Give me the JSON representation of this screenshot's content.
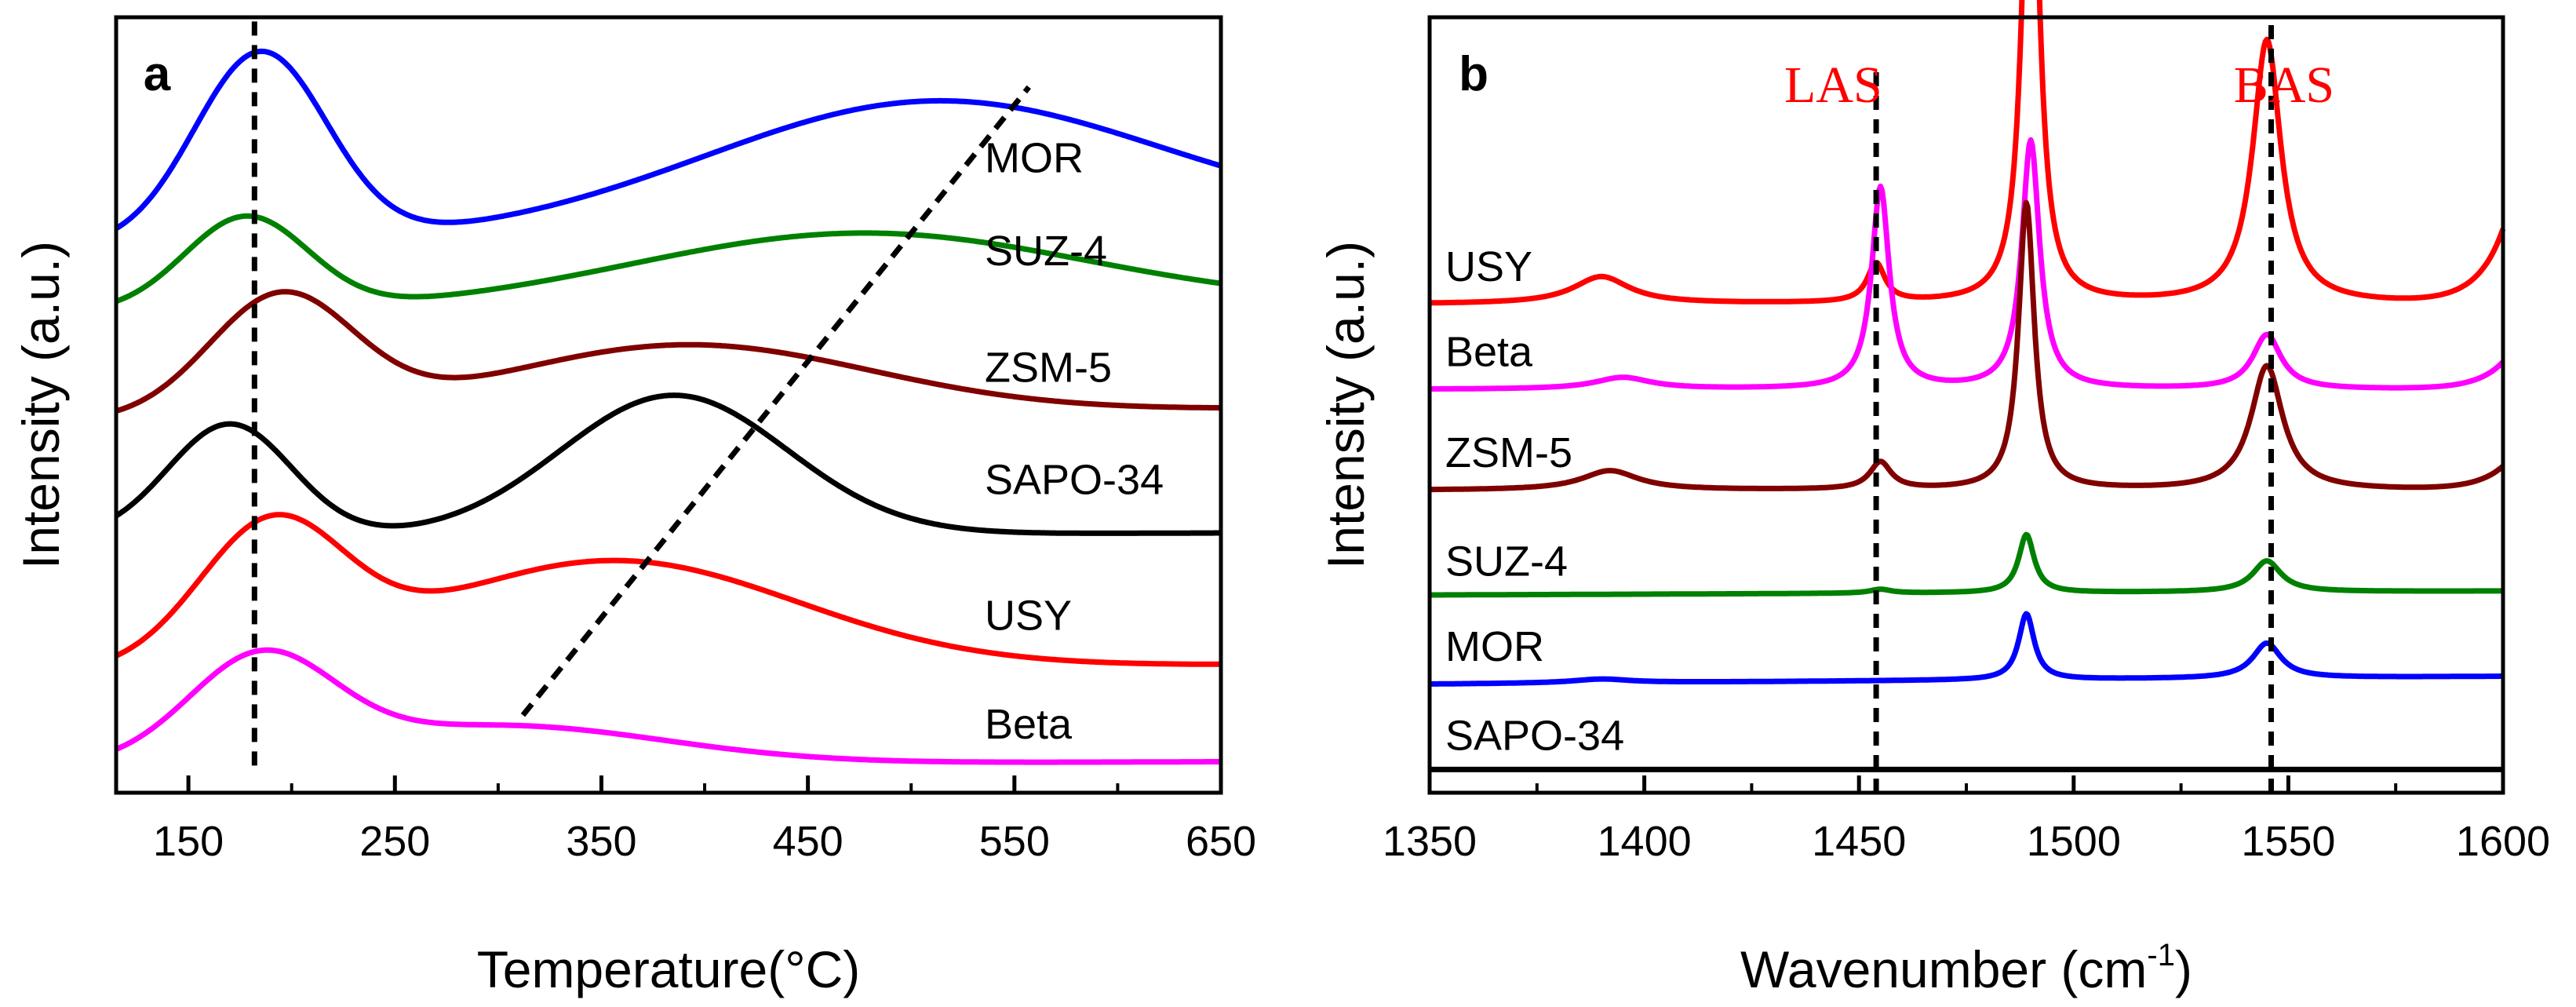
{
  "chart_data": [
    {
      "panel_label": "a",
      "type": "line",
      "title": "",
      "xlabel": "Temperature(°C)",
      "ylabel": "Intensity (a.u.)",
      "xlim": [
        115,
        650
      ],
      "ylim": [
        0,
        1
      ],
      "xticks": [
        150,
        250,
        350,
        450,
        550,
        650
      ],
      "grid": false,
      "series": [
        {
          "name": "MOR",
          "color": "#0000ff",
          "peaks": [
            {
              "x": 185,
              "h": 0.245,
              "w": 32
            },
            {
              "x": 510,
              "h": 0.165,
              "w": 110
            }
          ],
          "baseline": [
            0.705,
            0.735
          ],
          "label_y": 0.8
        },
        {
          "name": "SUZ-4",
          "color": "#008000",
          "peaks": [
            {
              "x": 178,
              "h": 0.12,
              "w": 30
            },
            {
              "x": 475,
              "h": 0.095,
              "w": 110
            }
          ],
          "baseline": [
            0.62,
            0.63
          ],
          "label_y": 0.68
        },
        {
          "name": "ZSM-5",
          "color": "#800000",
          "peaks": [
            {
              "x": 195,
              "h": 0.155,
              "w": 35
            },
            {
              "x": 390,
              "h": 0.09,
              "w": 90
            }
          ],
          "baseline": [
            0.48,
            0.495
          ],
          "label_y": 0.53
        },
        {
          "name": "SAPO-34",
          "color": "#000000",
          "peaks": [
            {
              "x": 170,
              "h": 0.145,
              "w": 30
            },
            {
              "x": 385,
              "h": 0.18,
              "w": 55
            }
          ],
          "baseline": [
            0.33,
            0.335
          ],
          "label_y": 0.385
        },
        {
          "name": "USY",
          "color": "#ff0000",
          "peaks": [
            {
              "x": 190,
              "h": 0.175,
              "w": 35
            },
            {
              "x": 355,
              "h": 0.14,
              "w": 90
            }
          ],
          "baseline": [
            0.155,
            0.165
          ],
          "label_y": 0.21
        },
        {
          "name": "Beta",
          "color": "#ff00ff",
          "peaks": [
            {
              "x": 185,
              "h": 0.13,
              "w": 35
            },
            {
              "x": 300,
              "h": 0.05,
              "w": 80
            }
          ],
          "baseline": [
            0.035,
            0.04
          ],
          "label_y": 0.07
        }
      ],
      "guide_lines": [
        {
          "x1": 182,
          "y1": 0.035,
          "x2": 182,
          "y2": 1.0
        },
        {
          "x1": 312,
          "y1": 0.1,
          "x2": 557,
          "y2": 0.91
        }
      ]
    },
    {
      "panel_label": "b",
      "type": "line",
      "title": "",
      "xlabel": "Wavenumber (cm",
      "xlabel_sup": "-1",
      "xlabel_suffix": ")",
      "ylabel": "Intensity (a.u.)",
      "xlim": [
        1350,
        1600
      ],
      "ylim": [
        0,
        1
      ],
      "xticks": [
        1350,
        1400,
        1450,
        1500,
        1550,
        1600
      ],
      "grid": false,
      "annotations": [
        {
          "text": "LAS",
          "x": 1444,
          "color": "#ff0000"
        },
        {
          "text": "BAS",
          "x": 1549,
          "color": "#ff0000"
        }
      ],
      "series": [
        {
          "name": "USY",
          "color": "#ff0000",
          "baseline": [
            0.63,
            0.63
          ],
          "end_rise": 0.095,
          "peaks": [
            {
              "x": 1390,
              "h": 0.035,
              "w": 8
            },
            {
              "x": 1454,
              "h": 0.05,
              "w": 2.5
            },
            {
              "x": 1490,
              "h": 0.73,
              "w": 2.2
            },
            {
              "x": 1545,
              "h": 0.34,
              "w": 4
            }
          ],
          "label_y": 0.66
        },
        {
          "name": "Beta",
          "color": "#ff00ff",
          "baseline": [
            0.52,
            0.52
          ],
          "end_rise": 0.035,
          "peaks": [
            {
              "x": 1395,
              "h": 0.015,
              "w": 8
            },
            {
              "x": 1455,
              "h": 0.26,
              "w": 2.5
            },
            {
              "x": 1490,
              "h": 0.32,
              "w": 2.5
            },
            {
              "x": 1545,
              "h": 0.07,
              "w": 4
            }
          ],
          "label_y": 0.55
        },
        {
          "name": "ZSM-5",
          "color": "#800000",
          "baseline": [
            0.39,
            0.39
          ],
          "end_rise": 0.03,
          "peaks": [
            {
              "x": 1392,
              "h": 0.025,
              "w": 8
            },
            {
              "x": 1455,
              "h": 0.035,
              "w": 3
            },
            {
              "x": 1489,
              "h": 0.37,
              "w": 2.2
            },
            {
              "x": 1545,
              "h": 0.16,
              "w": 4.5
            }
          ],
          "label_y": 0.42
        },
        {
          "name": "SUZ-4",
          "color": "#008000",
          "baseline": [
            0.255,
            0.26
          ],
          "end_rise": 0.0,
          "peaks": [
            {
              "x": 1455,
              "h": 0.005,
              "w": 3
            },
            {
              "x": 1489,
              "h": 0.075,
              "w": 2.2
            },
            {
              "x": 1545,
              "h": 0.04,
              "w": 4
            }
          ],
          "label_y": 0.28
        },
        {
          "name": "MOR",
          "color": "#0000ff",
          "baseline": [
            0.14,
            0.15
          ],
          "end_rise": 0.0,
          "peaks": [
            {
              "x": 1390,
              "h": 0.005,
              "w": 8
            },
            {
              "x": 1489,
              "h": 0.085,
              "w": 2.2
            },
            {
              "x": 1545,
              "h": 0.045,
              "w": 4
            }
          ],
          "label_y": 0.17
        },
        {
          "name": "SAPO-34",
          "color": "#000000",
          "baseline": [
            0.03,
            0.03
          ],
          "end_rise": 0.0,
          "peaks": [],
          "label_y": 0.055
        }
      ],
      "guide_lines": [
        {
          "x1": 1454,
          "y1": 0.0,
          "x2": 1454,
          "y2": 0.94
        },
        {
          "x1": 1546,
          "y1": 0.0,
          "x2": 1546,
          "y2": 0.99
        }
      ]
    }
  ]
}
